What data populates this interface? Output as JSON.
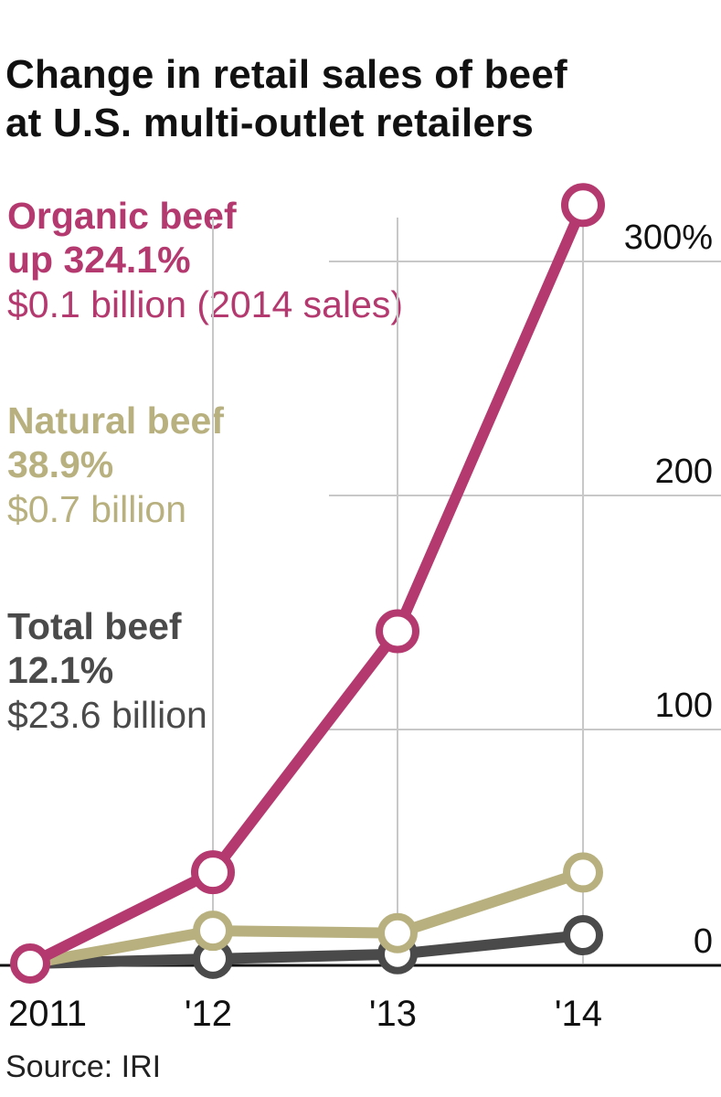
{
  "title_line1": "Change in retail sales of beef",
  "title_line2": "at U.S. multi-outlet retailers",
  "legend": {
    "organic": {
      "name": "Organic beef",
      "pct": "up 324.1%",
      "amount": "$0.1 billion (2014 sales)"
    },
    "natural": {
      "name": "Natural beef",
      "pct": "38.9%",
      "amount": "$0.7 billion"
    },
    "total": {
      "name": "Total beef",
      "pct": "12.1%",
      "amount": "$23.6 billion"
    }
  },
  "source": "Source: IRI",
  "chart_data": {
    "type": "line",
    "x": [
      "2011",
      "'12",
      "'13",
      "'14"
    ],
    "y_ticks": [
      "0",
      "100",
      "200",
      "300%"
    ],
    "y_tick_values": [
      0,
      100,
      200,
      300
    ],
    "ylim": [
      0,
      324.1
    ],
    "series": [
      {
        "name": "Organic beef",
        "color": "#b4396f",
        "values": [
          0,
          39,
          142,
          324.1
        ]
      },
      {
        "name": "Natural beef",
        "color": "#b8b17f",
        "values": [
          0,
          14,
          13,
          38.9
        ]
      },
      {
        "name": "Total beef",
        "color": "#4a4a4a",
        "values": [
          0,
          2,
          4,
          12.1
        ]
      }
    ],
    "grid": true
  }
}
